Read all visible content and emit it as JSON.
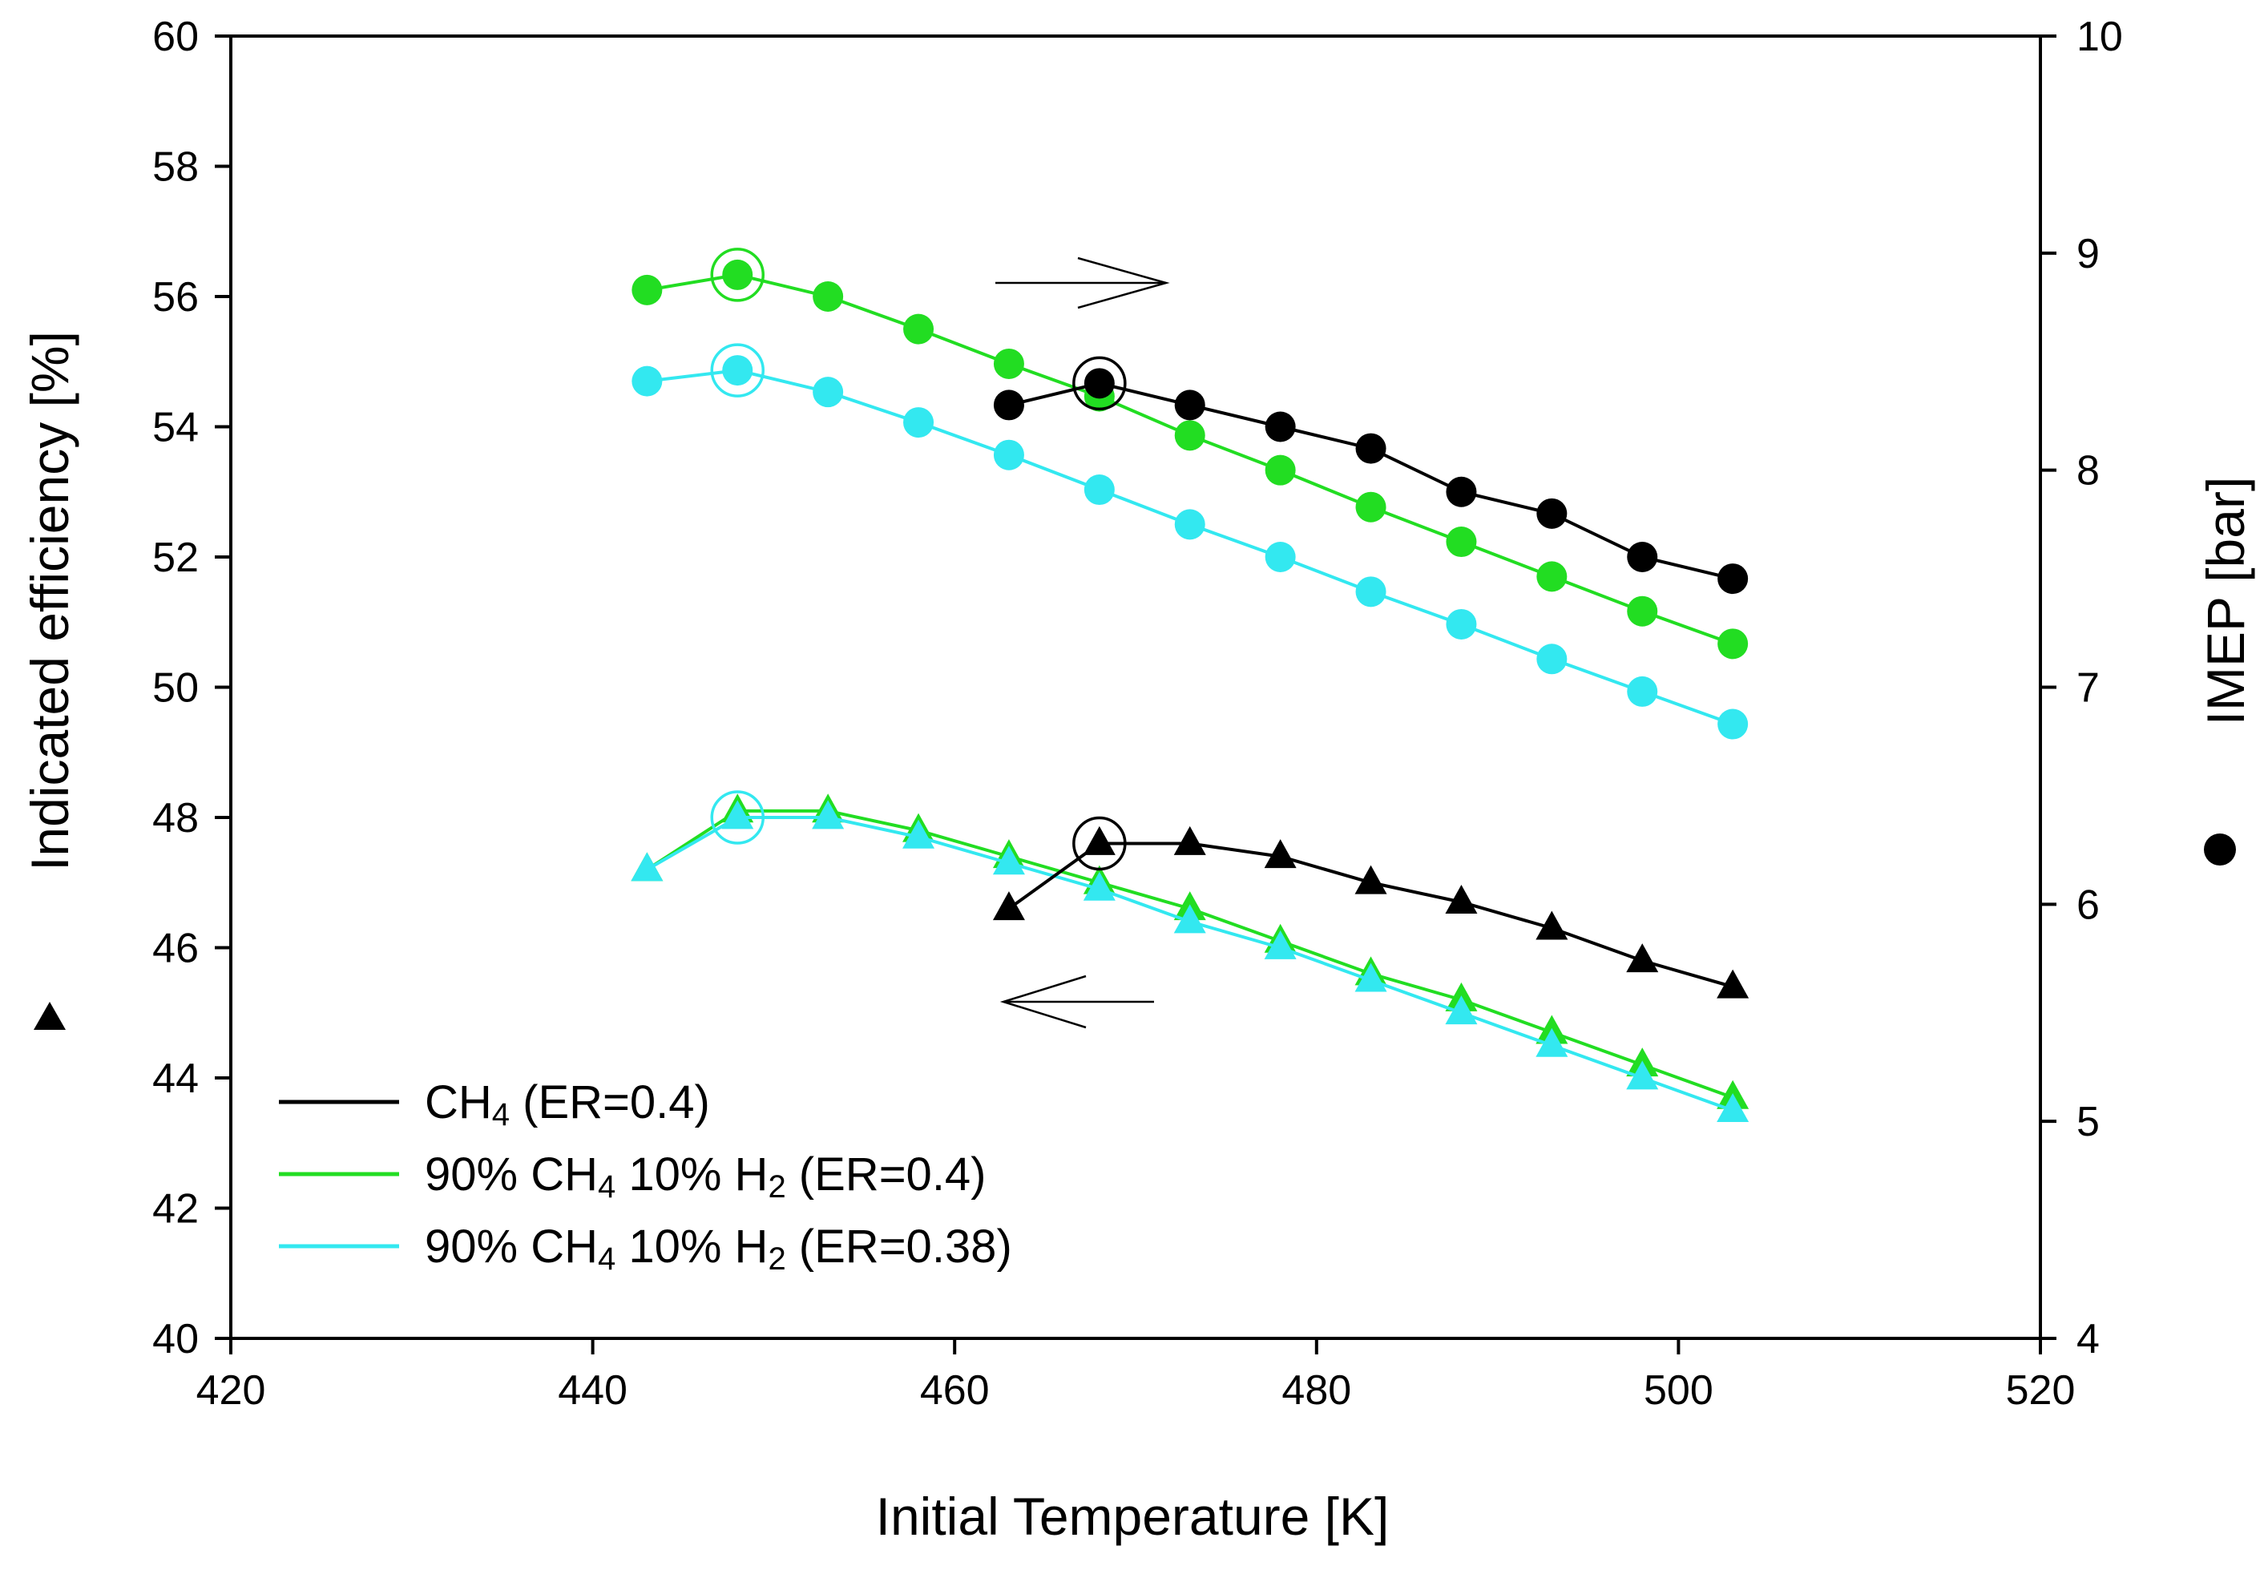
{
  "chart_data": {
    "type": "line",
    "title": "",
    "xlabel": "Initial Temperature [K]",
    "ylabel_left": "Indicated efficiency [%]",
    "ylabel_right": "IMEP [bar]",
    "xlim": [
      420,
      520
    ],
    "ylim_left": [
      40,
      60
    ],
    "ylim_right": [
      4,
      10
    ],
    "x_ticks": [
      420,
      440,
      460,
      480,
      500,
      520
    ],
    "y_left_ticks": [
      40,
      42,
      44,
      46,
      48,
      50,
      52,
      54,
      56,
      58,
      60
    ],
    "y_right_ticks": [
      4,
      5,
      6,
      7,
      8,
      9,
      10
    ],
    "grid": false,
    "legend_position": "bottom-left",
    "left_axis_marker": "triangle",
    "right_axis_marker": "circle",
    "colors": {
      "ch4": "#000000",
      "h2_040": "#22dd22",
      "h2_038": "#33e8f0"
    },
    "legend": [
      {
        "key": "ch4",
        "pre": "CH",
        "sub1": "4",
        "mid": " (ER=0.4)",
        "sub2": "",
        "post": ""
      },
      {
        "key": "h2_040",
        "pre": "90% CH",
        "sub1": "4",
        "mid": " 10% H",
        "sub2": "2",
        "post": " (ER=0.4)"
      },
      {
        "key": "h2_038",
        "pre": "90% CH",
        "sub1": "4",
        "mid": " 10% H",
        "sub2": "2",
        "post": " (ER=0.38)"
      }
    ],
    "series": [
      {
        "key": "ch4",
        "axis": "left",
        "marker": "triangle",
        "x": [
          463,
          468,
          473,
          478,
          483,
          488,
          493,
          498,
          503
        ],
        "y": [
          46.6,
          47.6,
          47.6,
          47.4,
          47.0,
          46.7,
          46.3,
          45.8,
          45.4
        ],
        "highlight_x": 468
      },
      {
        "key": "h2_040",
        "axis": "left",
        "marker": "triangle",
        "x": [
          443,
          448,
          453,
          458,
          463,
          468,
          473,
          478,
          483,
          488,
          493,
          498,
          503
        ],
        "y": [
          47.2,
          48.1,
          48.1,
          47.8,
          47.4,
          47.0,
          46.6,
          46.1,
          45.6,
          45.2,
          44.7,
          44.2,
          43.7
        ]
      },
      {
        "key": "h2_038",
        "axis": "left",
        "marker": "triangle",
        "x": [
          443,
          448,
          453,
          458,
          463,
          468,
          473,
          478,
          483,
          488,
          493,
          498,
          503
        ],
        "y": [
          47.2,
          48.0,
          48.0,
          47.7,
          47.3,
          46.9,
          46.4,
          46.0,
          45.5,
          45.0,
          44.5,
          44.0,
          43.5
        ],
        "highlight_x": 448
      },
      {
        "key": "ch4",
        "axis": "right",
        "marker": "circle",
        "x": [
          463,
          468,
          473,
          478,
          483,
          488,
          493,
          498,
          503
        ],
        "y": [
          8.3,
          8.4,
          8.3,
          8.2,
          8.1,
          7.9,
          7.8,
          7.6,
          7.5
        ],
        "highlight_x": 468
      },
      {
        "key": "h2_040",
        "axis": "right",
        "marker": "circle",
        "x": [
          443,
          448,
          453,
          458,
          463,
          468,
          473,
          478,
          483,
          488,
          493,
          498,
          503
        ],
        "y": [
          8.83,
          8.9,
          8.8,
          8.65,
          8.49,
          8.34,
          8.16,
          8.0,
          7.83,
          7.67,
          7.51,
          7.35,
          7.2
        ],
        "highlight_x": 448
      },
      {
        "key": "h2_038",
        "axis": "right",
        "marker": "circle",
        "x": [
          443,
          448,
          453,
          458,
          463,
          468,
          473,
          478,
          483,
          488,
          493,
          498,
          503
        ],
        "y": [
          8.41,
          8.46,
          8.36,
          8.22,
          8.07,
          7.91,
          7.75,
          7.6,
          7.44,
          7.29,
          7.13,
          6.98,
          6.83
        ],
        "highlight_x": 448
      }
    ]
  }
}
